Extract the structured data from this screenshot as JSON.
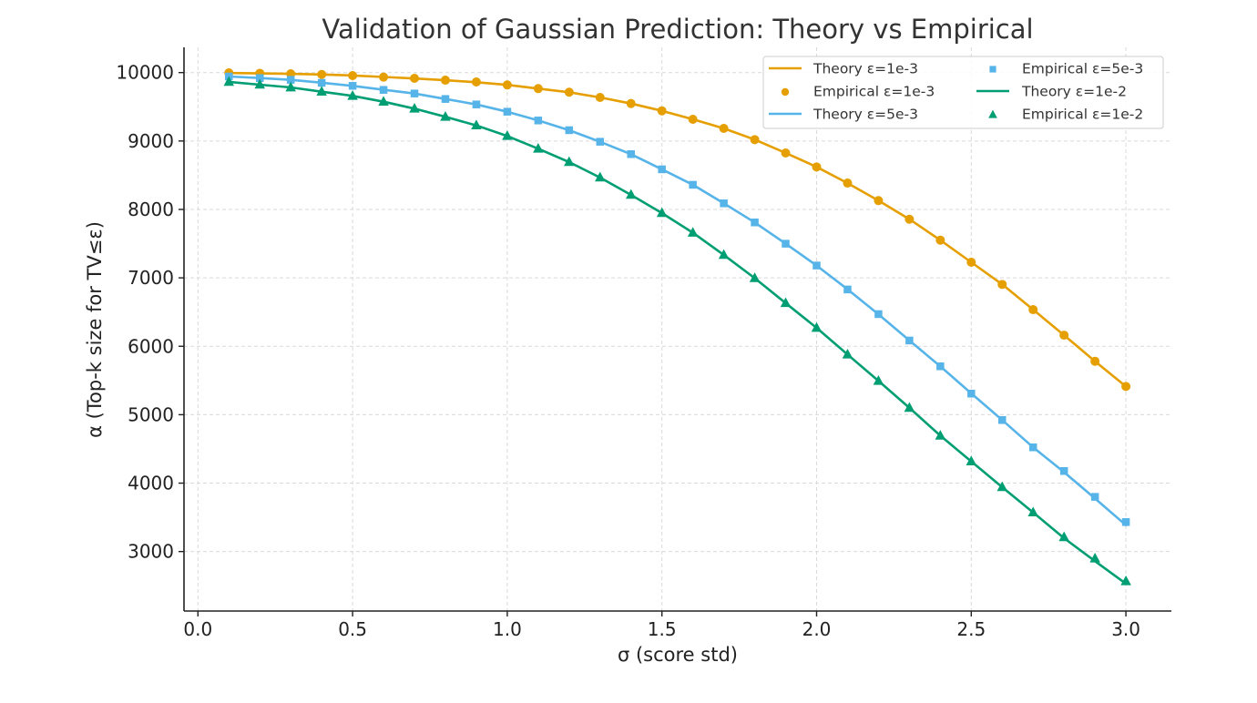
{
  "chart_data": {
    "type": "line",
    "title": "Validation of Gaussian Prediction: Theory vs Empirical",
    "xlabel": "σ (score std)",
    "ylabel": "α (Top-k size for TV≤ε)",
    "xlim": [
      -0.045,
      3.145
    ],
    "ylim": [
      2135,
      10370
    ],
    "xticks": [
      0.0,
      0.5,
      1.0,
      1.5,
      2.0,
      2.5,
      3.0
    ],
    "xtick_labels": [
      "0.0",
      "0.5",
      "1.0",
      "1.5",
      "2.0",
      "2.5",
      "3.0"
    ],
    "yticks": [
      3000,
      4000,
      5000,
      6000,
      7000,
      8000,
      9000,
      10000
    ],
    "ytick_labels": [
      "3000",
      "4000",
      "5000",
      "6000",
      "7000",
      "8000",
      "9000",
      "10000"
    ],
    "grid": true,
    "legend_position": "upper right",
    "legend_columns": 2,
    "x": [
      0.1,
      0.2,
      0.3,
      0.4,
      0.5,
      0.6,
      0.7,
      0.8,
      0.9,
      1.0,
      1.1,
      1.2,
      1.3,
      1.4,
      1.5,
      1.6,
      1.7,
      1.8,
      1.9,
      2.0,
      2.1,
      2.2,
      2.3,
      2.4,
      2.5,
      2.6,
      2.7,
      2.8,
      2.9,
      3.0
    ],
    "series": [
      {
        "name": "Theory ε=1e-3",
        "kind": "line",
        "color": "#E69F00",
        "values": [
          9993,
          9988,
          9982,
          9972,
          9957,
          9936,
          9914,
          9888,
          9859,
          9820,
          9766,
          9712,
          9637,
          9548,
          9441,
          9317,
          9184,
          9020,
          8826,
          8621,
          8385,
          8130,
          7857,
          7551,
          7228,
          6904,
          6536,
          6162,
          5781,
          5413
        ]
      },
      {
        "name": "Empirical ε=1e-3",
        "kind": "marker",
        "marker": "circle",
        "color": "#E69F00",
        "values": [
          9996,
          9990,
          9983,
          9973,
          9956,
          9934,
          9916,
          9889,
          9863,
          9819,
          9766,
          9713,
          9637,
          9548,
          9441,
          9317,
          9184,
          9020,
          8825,
          8621,
          8385,
          8129,
          7857,
          7551,
          7228,
          6904,
          6535,
          6162,
          5781,
          5413
        ]
      },
      {
        "name": "Theory ε=5e-3",
        "kind": "line",
        "color": "#56B4E9",
        "values": [
          9943,
          9920,
          9894,
          9852,
          9806,
          9748,
          9694,
          9614,
          9534,
          9428,
          9300,
          9158,
          8989,
          8808,
          8586,
          8360,
          8089,
          7810,
          7499,
          7180,
          6832,
          6468,
          6084,
          5707,
          5312,
          4922,
          4523,
          4160,
          3775,
          3386
        ]
      },
      {
        "name": "Empirical ε=5e-3",
        "kind": "marker",
        "marker": "square",
        "color": "#56B4E9",
        "values": [
          9943,
          9920,
          9894,
          9850,
          9806,
          9747,
          9694,
          9614,
          9534,
          9428,
          9300,
          9158,
          8989,
          8808,
          8586,
          8360,
          8089,
          7810,
          7499,
          7180,
          6830,
          6470,
          6084,
          5707,
          5308,
          4922,
          4523,
          4177,
          3799,
          3431
        ]
      },
      {
        "name": "Theory ε=1e-2",
        "kind": "line",
        "color": "#009E73",
        "values": [
          9863,
          9823,
          9783,
          9721,
          9659,
          9574,
          9473,
          9353,
          9228,
          9073,
          8887,
          8692,
          8466,
          8213,
          7947,
          7659,
          7335,
          6995,
          6632,
          6269,
          5880,
          5494,
          5100,
          4694,
          4317,
          3941,
          3572,
          3195,
          2860,
          2530
        ]
      },
      {
        "name": "Empirical ε=1e-2",
        "kind": "marker",
        "marker": "triangle",
        "color": "#009E73",
        "values": [
          9863,
          9823,
          9783,
          9721,
          9659,
          9574,
          9473,
          9353,
          9228,
          9073,
          8887,
          8692,
          8466,
          8213,
          7947,
          7659,
          7335,
          6995,
          6632,
          6269,
          5880,
          5494,
          5100,
          4694,
          4317,
          3941,
          3572,
          3209,
          2899,
          2566
        ]
      }
    ]
  },
  "legend": {
    "items": [
      {
        "label": "Theory ε=1e-3",
        "symbol": "line",
        "color": "#E69F00"
      },
      {
        "label": "Empirical ε=1e-3",
        "symbol": "circle",
        "color": "#E69F00"
      },
      {
        "label": "Theory ε=5e-3",
        "symbol": "line",
        "color": "#56B4E9"
      },
      {
        "label": "Empirical ε=5e-3",
        "symbol": "square",
        "color": "#56B4E9"
      },
      {
        "label": "Theory ε=1e-2",
        "symbol": "line",
        "color": "#009E73"
      },
      {
        "label": "Empirical ε=1e-2",
        "symbol": "triangle",
        "color": "#009E73"
      }
    ]
  }
}
